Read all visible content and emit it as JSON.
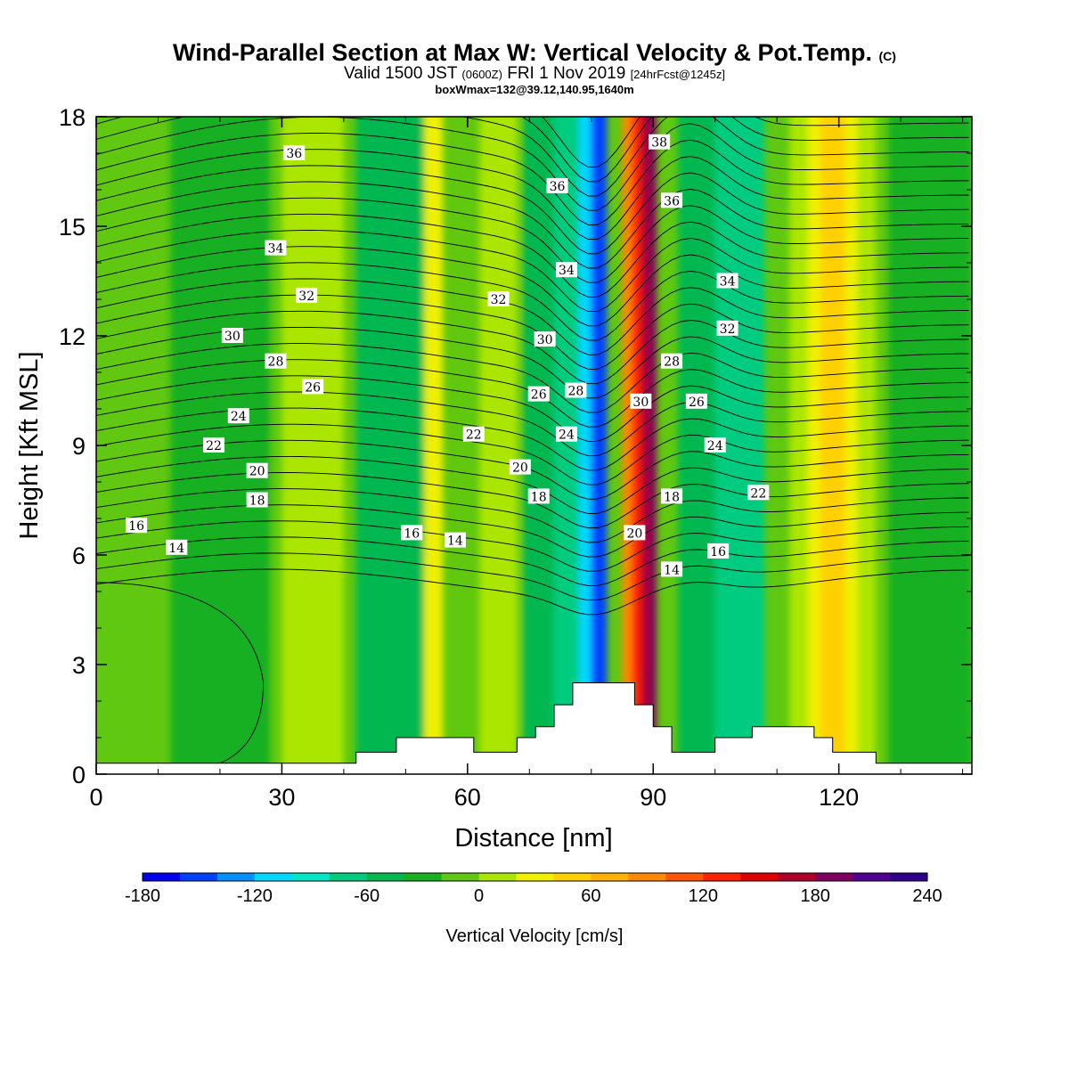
{
  "header": {
    "title": "Wind-Parallel Section at Max W: Vertical Velocity & Pot.Temp.",
    "title_tag": "(C)",
    "valid_a": "Valid 1500 JST ",
    "valid_b": "(0600Z)",
    "valid_c": " FRI 1 Nov 2019 ",
    "valid_d": "[24hrFcst@1245z]",
    "box_line": "boxWmax=132@39.12,140.95,1640m"
  },
  "chart_data": {
    "type": "heatmap",
    "xlabel": "Distance [nm]",
    "ylabel": "Height [Kft MSL]",
    "xlim": [
      0,
      141.5
    ],
    "ylim": [
      0,
      18
    ],
    "x_ticks": [
      0,
      30,
      60,
      90,
      120
    ],
    "y_ticks": [
      0,
      3,
      6,
      9,
      12,
      15,
      18
    ],
    "colorbar": {
      "title": "Vertical Velocity [cm/s]",
      "min": -180,
      "max": 240,
      "step": 20,
      "tick_labels": [
        -180,
        -120,
        -60,
        0,
        60,
        120,
        180,
        240
      ],
      "colors": [
        "#0000f0",
        "#0040ff",
        "#0090ff",
        "#00d8ff",
        "#00e8c8",
        "#00cc80",
        "#00b850",
        "#18b020",
        "#60c810",
        "#aae600",
        "#f0f000",
        "#ffd000",
        "#ffb000",
        "#ff8800",
        "#ff5500",
        "#ff2000",
        "#e00000",
        "#b0002a",
        "#800060",
        "#500090",
        "#30008a"
      ]
    },
    "velocity_field": {
      "background": 8,
      "bands": [
        {
          "x": [
            12,
            28
          ],
          "level": 7
        },
        {
          "x": [
            30,
            40
          ],
          "level": 9
        },
        {
          "x": [
            42,
            56
          ],
          "level": 6
        },
        {
          "x": [
            53,
            56
          ],
          "level": 10
        },
        {
          "x": [
            58,
            66
          ],
          "level": 8
        },
        {
          "x": [
            62,
            68
          ],
          "level": 9
        },
        {
          "x": [
            69,
            76
          ],
          "level": 6
        },
        {
          "x": [
            74,
            79
          ],
          "level": 5
        },
        {
          "x": [
            78,
            81.5
          ],
          "level": 3
        },
        {
          "x": [
            80,
            82.5
          ],
          "level": 1
        },
        {
          "x": [
            85,
            87.5
          ],
          "level": 13
        },
        {
          "x": [
            86.5,
            89
          ],
          "level": 15
        },
        {
          "x": [
            88,
            90.5
          ],
          "level": 17
        },
        {
          "x": [
            89.2,
            90.5
          ],
          "level": 18
        },
        {
          "x": [
            94,
            106
          ],
          "level": 6
        },
        {
          "x": [
            100,
            108
          ],
          "level": 5
        },
        {
          "x": [
            112,
            126
          ],
          "level": 9
        },
        {
          "x": [
            115,
            123
          ],
          "level": 10
        },
        {
          "x": [
            117,
            121
          ],
          "level": 11
        },
        {
          "x": [
            128,
            141.5
          ],
          "level": 7
        }
      ]
    },
    "terrain_kft": [
      {
        "x": 0,
        "h": 0.3
      },
      {
        "x": 42,
        "h": 0.6
      },
      {
        "x": 48.5,
        "h": 1.0
      },
      {
        "x": 61,
        "h": 0.6
      },
      {
        "x": 68,
        "h": 1.0
      },
      {
        "x": 71,
        "h": 1.3
      },
      {
        "x": 74,
        "h": 1.9
      },
      {
        "x": 77,
        "h": 2.5
      },
      {
        "x": 87,
        "h": 1.9
      },
      {
        "x": 90,
        "h": 1.3
      },
      {
        "x": 93,
        "h": 0.6
      },
      {
        "x": 100,
        "h": 1.0
      },
      {
        "x": 106,
        "h": 1.3
      },
      {
        "x": 116,
        "h": 1.0
      },
      {
        "x": 119,
        "h": 0.6
      },
      {
        "x": 126,
        "h": 0.3
      },
      {
        "x": 141.5,
        "h": 0.3
      }
    ],
    "theta_labels": [
      {
        "x": 32,
        "y": 17.0,
        "text": "36"
      },
      {
        "x": 29,
        "y": 14.4,
        "text": "34"
      },
      {
        "x": 34,
        "y": 13.1,
        "text": "32"
      },
      {
        "x": 22,
        "y": 12.0,
        "text": "30"
      },
      {
        "x": 29,
        "y": 11.3,
        "text": "28"
      },
      {
        "x": 35,
        "y": 10.6,
        "text": "26"
      },
      {
        "x": 23,
        "y": 9.8,
        "text": "24"
      },
      {
        "x": 19,
        "y": 9.0,
        "text": "22"
      },
      {
        "x": 26,
        "y": 8.3,
        "text": "20"
      },
      {
        "x": 26,
        "y": 7.5,
        "text": "18"
      },
      {
        "x": 6.5,
        "y": 6.8,
        "text": "16"
      },
      {
        "x": 13,
        "y": 6.2,
        "text": "14"
      },
      {
        "x": 65,
        "y": 13.0,
        "text": "32"
      },
      {
        "x": 61,
        "y": 9.3,
        "text": "22"
      },
      {
        "x": 51,
        "y": 6.6,
        "text": "16"
      },
      {
        "x": 58,
        "y": 6.4,
        "text": "14"
      },
      {
        "x": 74.5,
        "y": 16.1,
        "text": "36"
      },
      {
        "x": 76,
        "y": 13.8,
        "text": "34"
      },
      {
        "x": 72.5,
        "y": 11.9,
        "text": "30"
      },
      {
        "x": 71.5,
        "y": 10.4,
        "text": "26"
      },
      {
        "x": 77.5,
        "y": 10.5,
        "text": "28"
      },
      {
        "x": 76,
        "y": 9.3,
        "text": "24"
      },
      {
        "x": 68.5,
        "y": 8.4,
        "text": "20"
      },
      {
        "x": 71.5,
        "y": 7.6,
        "text": "18"
      },
      {
        "x": 87,
        "y": 6.6,
        "text": "20"
      },
      {
        "x": 88,
        "y": 10.2,
        "text": "30"
      },
      {
        "x": 91,
        "y": 17.3,
        "text": "38"
      },
      {
        "x": 93,
        "y": 15.7,
        "text": "36"
      },
      {
        "x": 102,
        "y": 13.5,
        "text": "34"
      },
      {
        "x": 102,
        "y": 12.2,
        "text": "32"
      },
      {
        "x": 93,
        "y": 11.3,
        "text": "28"
      },
      {
        "x": 97,
        "y": 10.2,
        "text": "26"
      },
      {
        "x": 100,
        "y": 9.0,
        "text": "24"
      },
      {
        "x": 107,
        "y": 7.7,
        "text": "22"
      },
      {
        "x": 93,
        "y": 7.6,
        "text": "18"
      },
      {
        "x": 100.5,
        "y": 6.1,
        "text": "16"
      },
      {
        "x": 93,
        "y": 5.6,
        "text": "14"
      }
    ]
  }
}
